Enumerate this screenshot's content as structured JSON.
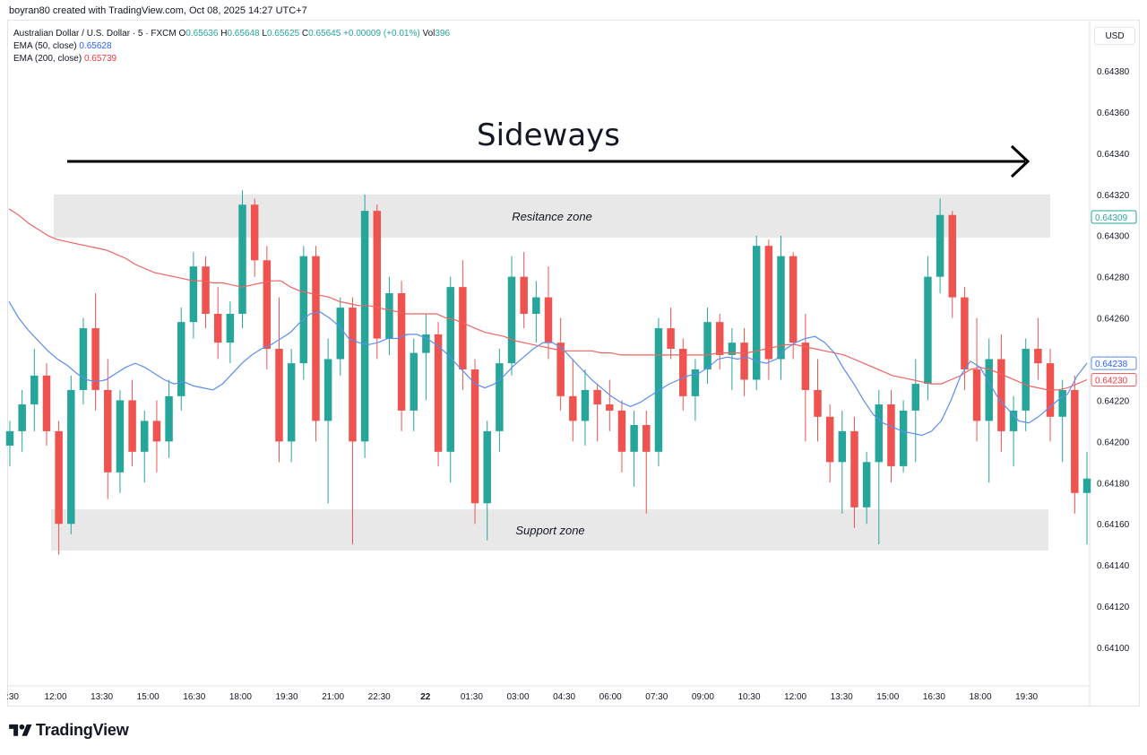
{
  "header": {
    "attribution": "boyran80 created with TradingView.com, Oct 08, 2025 14:27 UTC+7"
  },
  "legend": {
    "symbol": "Australian Dollar / U.S. Dollar · 5 · FXCM",
    "o_label": "O",
    "o_value": "0.65636",
    "h_label": "H",
    "h_value": "0.65648",
    "l_label": "L",
    "l_value": "0.65625",
    "c_label": "C",
    "c_value": "0.65645",
    "change": "+0.00009 (+0.01%)",
    "vol_label": "Vol",
    "vol_value": "396",
    "ema50_label": "EMA (50, close)",
    "ema50_value": "0.65628",
    "ema200_label": "EMA (200, close)",
    "ema200_value": "0.65739"
  },
  "currency_button": "USD",
  "colors": {
    "up": "#26a69a",
    "down": "#ef5350",
    "ema50": "#5b8def",
    "ema200": "#f0625f",
    "zone": "#e8e8e8",
    "axis_text": "#131722"
  },
  "brand": {
    "name": "TradingView",
    "icon": "tradingview-logo-icon"
  },
  "chart_data": {
    "type": "candlestick",
    "title": "Sideways",
    "annotations": [
      "Sideways",
      "Resitance zone",
      "Support zone"
    ],
    "y_axis": {
      "ticks": [
        "0.64380",
        "0.64360",
        "0.64340",
        "0.64320",
        "0.64300",
        "0.64280",
        "0.64260",
        "0.64240",
        "0.64220",
        "0.64200",
        "0.64180",
        "0.64160",
        "0.64140",
        "0.64120",
        "0.64100"
      ],
      "range": [
        0.64082,
        0.64402
      ]
    },
    "x_axis": {
      "ticks": [
        ":30",
        "12:00",
        "13:30",
        "15:00",
        "16:30",
        "18:00",
        "19:30",
        "21:00",
        "22:30",
        "22",
        "01:30",
        "03:00",
        "04:30",
        "06:00",
        "07:30",
        "09:00",
        "10:30",
        "12:00",
        "13:30",
        "15:00",
        "16:30",
        "18:00",
        "19:30"
      ],
      "bold_ticks": [
        "22"
      ]
    },
    "zones": [
      {
        "label": "Resitance zone",
        "low": 0.64299,
        "high": 0.6432
      },
      {
        "label": "Support zone",
        "low": 0.64147,
        "high": 0.64167
      }
    ],
    "price_labels": [
      {
        "value": "0.64309",
        "series": "last"
      },
      {
        "value": "0.64238",
        "series": "ema50"
      },
      {
        "value": "0.64230",
        "series": "ema200"
      }
    ],
    "ema50": [
      [
        0,
        0.64268
      ],
      [
        1,
        0.6426
      ],
      [
        2,
        0.64254
      ],
      [
        3,
        0.64249
      ],
      [
        4,
        0.64244
      ],
      [
        5,
        0.6424
      ],
      [
        6,
        0.64237
      ],
      [
        7,
        0.64233
      ],
      [
        8,
        0.6423
      ],
      [
        9,
        0.64229
      ],
      [
        10,
        0.6423
      ],
      [
        11,
        0.64233
      ],
      [
        12,
        0.64236
      ],
      [
        13,
        0.64238
      ],
      [
        14,
        0.64236
      ],
      [
        15,
        0.64233
      ],
      [
        16,
        0.6423
      ],
      [
        17,
        0.64228
      ],
      [
        18,
        0.64229
      ],
      [
        19,
        0.64227
      ],
      [
        20,
        0.64226
      ],
      [
        21,
        0.64225
      ],
      [
        22,
        0.64228
      ],
      [
        23,
        0.64233
      ],
      [
        24,
        0.64238
      ],
      [
        25,
        0.64242
      ],
      [
        26,
        0.64245
      ],
      [
        27,
        0.64247
      ],
      [
        28,
        0.6425
      ],
      [
        29,
        0.64253
      ],
      [
        30,
        0.64258
      ],
      [
        31,
        0.64262
      ],
      [
        32,
        0.64263
      ],
      [
        33,
        0.6426
      ],
      [
        34,
        0.64256
      ],
      [
        35,
        0.6425
      ],
      [
        36,
        0.64248
      ],
      [
        37,
        0.64247
      ],
      [
        38,
        0.64248
      ],
      [
        39,
        0.6425
      ],
      [
        40,
        0.6425
      ],
      [
        41,
        0.64252
      ],
      [
        42,
        0.64252
      ],
      [
        43,
        0.6425
      ],
      [
        44,
        0.64247
      ],
      [
        45,
        0.64243
      ],
      [
        46,
        0.64238
      ],
      [
        47,
        0.64233
      ],
      [
        48,
        0.64228
      ],
      [
        49,
        0.64226
      ],
      [
        50,
        0.64228
      ],
      [
        51,
        0.64232
      ],
      [
        52,
        0.64237
      ],
      [
        53,
        0.64241
      ],
      [
        54,
        0.64245
      ],
      [
        55,
        0.64248
      ],
      [
        56,
        0.64248
      ],
      [
        57,
        0.64245
      ],
      [
        58,
        0.6424
      ],
      [
        59,
        0.64235
      ],
      [
        60,
        0.6423
      ],
      [
        61,
        0.64226
      ],
      [
        62,
        0.64222
      ],
      [
        63,
        0.64219
      ],
      [
        64,
        0.64217
      ],
      [
        65,
        0.64219
      ],
      [
        66,
        0.64222
      ],
      [
        67,
        0.64225
      ],
      [
        68,
        0.64228
      ],
      [
        69,
        0.6423
      ],
      [
        70,
        0.64232
      ],
      [
        71,
        0.64233
      ],
      [
        72,
        0.64236
      ],
      [
        73,
        0.6424
      ],
      [
        74,
        0.64241
      ],
      [
        75,
        0.6424
      ],
      [
        76,
        0.64241
      ],
      [
        77,
        0.64239
      ],
      [
        78,
        0.64238
      ],
      [
        79,
        0.6424
      ],
      [
        80,
        0.64245
      ],
      [
        81,
        0.64248
      ],
      [
        82,
        0.6425
      ],
      [
        83,
        0.64251
      ],
      [
        84,
        0.64248
      ],
      [
        85,
        0.64243
      ],
      [
        86,
        0.64235
      ],
      [
        87,
        0.64228
      ],
      [
        88,
        0.6422
      ],
      [
        89,
        0.64213
      ],
      [
        90,
        0.64209
      ],
      [
        91,
        0.64207
      ],
      [
        92,
        0.64205
      ],
      [
        93,
        0.64204
      ],
      [
        94,
        0.64203
      ],
      [
        95,
        0.64205
      ],
      [
        96,
        0.6421
      ],
      [
        97,
        0.6422
      ],
      [
        98,
        0.64232
      ],
      [
        99,
        0.64239
      ],
      [
        100,
        0.64236
      ],
      [
        101,
        0.64228
      ],
      [
        102,
        0.6422
      ],
      [
        103,
        0.64215
      ],
      [
        104,
        0.6421
      ],
      [
        105,
        0.64209
      ],
      [
        106,
        0.64212
      ],
      [
        107,
        0.64216
      ],
      [
        108,
        0.6422
      ],
      [
        109,
        0.64223
      ],
      [
        110,
        0.64232
      ],
      [
        111,
        0.64238
      ]
    ],
    "ema200": [
      [
        0,
        0.64313
      ],
      [
        1,
        0.6431
      ],
      [
        2,
        0.64306
      ],
      [
        3,
        0.64303
      ],
      [
        4,
        0.643
      ],
      [
        5,
        0.64298
      ],
      [
        6,
        0.64297
      ],
      [
        7,
        0.64296
      ],
      [
        8,
        0.64295
      ],
      [
        9,
        0.64294
      ],
      [
        10,
        0.64293
      ],
      [
        11,
        0.64291
      ],
      [
        12,
        0.64289
      ],
      [
        13,
        0.64286
      ],
      [
        14,
        0.64284
      ],
      [
        15,
        0.64282
      ],
      [
        16,
        0.64281
      ],
      [
        17,
        0.6428
      ],
      [
        18,
        0.64279
      ],
      [
        19,
        0.64278
      ],
      [
        20,
        0.64278
      ],
      [
        21,
        0.64277
      ],
      [
        22,
        0.64277
      ],
      [
        23,
        0.64276
      ],
      [
        24,
        0.64275
      ],
      [
        25,
        0.64276
      ],
      [
        26,
        0.64277
      ],
      [
        27,
        0.64278
      ],
      [
        28,
        0.64278
      ],
      [
        29,
        0.64275
      ],
      [
        30,
        0.64273
      ],
      [
        31,
        0.64272
      ],
      [
        32,
        0.64271
      ],
      [
        33,
        0.6427
      ],
      [
        34,
        0.64268
      ],
      [
        35,
        0.64267
      ],
      [
        36,
        0.64266
      ],
      [
        37,
        0.64266
      ],
      [
        38,
        0.64265
      ],
      [
        39,
        0.64264
      ],
      [
        40,
        0.64263
      ],
      [
        41,
        0.64262
      ],
      [
        42,
        0.64262
      ],
      [
        43,
        0.64262
      ],
      [
        44,
        0.64262
      ],
      [
        45,
        0.6426
      ],
      [
        46,
        0.64259
      ],
      [
        47,
        0.64257
      ],
      [
        48,
        0.64255
      ],
      [
        49,
        0.64253
      ],
      [
        50,
        0.64252
      ],
      [
        51,
        0.64251
      ],
      [
        52,
        0.64249
      ],
      [
        53,
        0.64248
      ],
      [
        54,
        0.64247
      ],
      [
        55,
        0.64246
      ],
      [
        56,
        0.64245
      ],
      [
        57,
        0.64244
      ],
      [
        58,
        0.64244
      ],
      [
        59,
        0.64244
      ],
      [
        60,
        0.64244
      ],
      [
        61,
        0.64243
      ],
      [
        62,
        0.64243
      ],
      [
        63,
        0.64242
      ],
      [
        64,
        0.64242
      ],
      [
        65,
        0.64242
      ],
      [
        66,
        0.64242
      ],
      [
        67,
        0.64242
      ],
      [
        68,
        0.64242
      ],
      [
        69,
        0.64242
      ],
      [
        70,
        0.64242
      ],
      [
        71,
        0.64242
      ],
      [
        72,
        0.64242
      ],
      [
        73,
        0.64243
      ],
      [
        74,
        0.64243
      ],
      [
        75,
        0.64243
      ],
      [
        76,
        0.64243
      ],
      [
        77,
        0.64244
      ],
      [
        78,
        0.64245
      ],
      [
        79,
        0.64246
      ],
      [
        80,
        0.64247
      ],
      [
        81,
        0.64247
      ],
      [
        82,
        0.64246
      ],
      [
        83,
        0.64245
      ],
      [
        84,
        0.64244
      ],
      [
        85,
        0.64243
      ],
      [
        86,
        0.64242
      ],
      [
        87,
        0.6424
      ],
      [
        88,
        0.64238
      ],
      [
        89,
        0.64236
      ],
      [
        90,
        0.64234
      ],
      [
        91,
        0.64232
      ],
      [
        92,
        0.64231
      ],
      [
        93,
        0.6423
      ],
      [
        94,
        0.64229
      ],
      [
        95,
        0.64228
      ],
      [
        96,
        0.64228
      ],
      [
        97,
        0.6423
      ],
      [
        98,
        0.64232
      ],
      [
        99,
        0.64235
      ],
      [
        100,
        0.64236
      ],
      [
        101,
        0.64235
      ],
      [
        102,
        0.64233
      ],
      [
        103,
        0.64231
      ],
      [
        104,
        0.64229
      ],
      [
        105,
        0.64227
      ],
      [
        106,
        0.64226
      ],
      [
        107,
        0.64225
      ],
      [
        108,
        0.64225
      ],
      [
        109,
        0.64226
      ],
      [
        110,
        0.64228
      ],
      [
        111,
        0.6423
      ]
    ],
    "candles": [
      [
        0.64198,
        0.6421,
        0.64188,
        0.64205
      ],
      [
        0.64205,
        0.64225,
        0.64195,
        0.64218
      ],
      [
        0.64218,
        0.64245,
        0.64205,
        0.64232
      ],
      [
        0.64232,
        0.64238,
        0.64198,
        0.64205
      ],
      [
        0.64205,
        0.6421,
        0.64145,
        0.6416
      ],
      [
        0.6416,
        0.64232,
        0.64155,
        0.64225
      ],
      [
        0.64225,
        0.6426,
        0.64218,
        0.64255
      ],
      [
        0.64255,
        0.64272,
        0.64215,
        0.64225
      ],
      [
        0.64225,
        0.6424,
        0.64172,
        0.64185
      ],
      [
        0.64185,
        0.64225,
        0.64175,
        0.6422
      ],
      [
        0.6422,
        0.6423,
        0.64188,
        0.64195
      ],
      [
        0.64195,
        0.64215,
        0.6418,
        0.6421
      ],
      [
        0.6421,
        0.6422,
        0.64185,
        0.642
      ],
      [
        0.642,
        0.6423,
        0.64192,
        0.64222
      ],
      [
        0.64222,
        0.64265,
        0.64215,
        0.64258
      ],
      [
        0.64258,
        0.64292,
        0.6425,
        0.64285
      ],
      [
        0.64285,
        0.6429,
        0.64255,
        0.64262
      ],
      [
        0.64262,
        0.64275,
        0.6424,
        0.64248
      ],
      [
        0.64248,
        0.64268,
        0.64238,
        0.64262
      ],
      [
        0.64262,
        0.64322,
        0.64255,
        0.64315
      ],
      [
        0.64315,
        0.64318,
        0.6428,
        0.64288
      ],
      [
        0.64288,
        0.64295,
        0.64235,
        0.64245
      ],
      [
        0.64245,
        0.6427,
        0.6419,
        0.642
      ],
      [
        0.642,
        0.64245,
        0.6419,
        0.64238
      ],
      [
        0.64238,
        0.64295,
        0.6423,
        0.6429
      ],
      [
        0.6429,
        0.64295,
        0.642,
        0.6421
      ],
      [
        0.6421,
        0.6425,
        0.6417,
        0.6424
      ],
      [
        0.6424,
        0.6427,
        0.64232,
        0.64265
      ],
      [
        0.64265,
        0.6427,
        0.6415,
        0.642
      ],
      [
        0.642,
        0.6432,
        0.64192,
        0.64312
      ],
      [
        0.64312,
        0.64315,
        0.6424,
        0.6425
      ],
      [
        0.6425,
        0.6428,
        0.64242,
        0.64272
      ],
      [
        0.64272,
        0.64278,
        0.64205,
        0.64215
      ],
      [
        0.64215,
        0.6425,
        0.64205,
        0.64243
      ],
      [
        0.64243,
        0.64262,
        0.6422,
        0.64252
      ],
      [
        0.64252,
        0.64258,
        0.64188,
        0.64195
      ],
      [
        0.64195,
        0.6428,
        0.6418,
        0.64275
      ],
      [
        0.64275,
        0.64288,
        0.64225,
        0.64235
      ],
      [
        0.64235,
        0.6424,
        0.6416,
        0.6417
      ],
      [
        0.6417,
        0.6421,
        0.64152,
        0.64205
      ],
      [
        0.64205,
        0.64245,
        0.64195,
        0.64238
      ],
      [
        0.64238,
        0.6429,
        0.64232,
        0.6428
      ],
      [
        0.6428,
        0.64292,
        0.64255,
        0.64262
      ],
      [
        0.64262,
        0.64278,
        0.64248,
        0.6427
      ],
      [
        0.6427,
        0.64285,
        0.6424,
        0.64248
      ],
      [
        0.64248,
        0.6426,
        0.64215,
        0.64222
      ],
      [
        0.64222,
        0.6424,
        0.642,
        0.6421
      ],
      [
        0.6421,
        0.64235,
        0.64198,
        0.64225
      ],
      [
        0.64225,
        0.64228,
        0.642,
        0.64218
      ],
      [
        0.64218,
        0.6423,
        0.64205,
        0.64215
      ],
      [
        0.64215,
        0.6422,
        0.64185,
        0.64195
      ],
      [
        0.64195,
        0.64215,
        0.64178,
        0.64208
      ],
      [
        0.64208,
        0.64215,
        0.64165,
        0.64195
      ],
      [
        0.64195,
        0.6426,
        0.64188,
        0.64255
      ],
      [
        0.64255,
        0.64265,
        0.6424,
        0.64245
      ],
      [
        0.64245,
        0.6425,
        0.64215,
        0.64222
      ],
      [
        0.64222,
        0.6424,
        0.6421,
        0.64235
      ],
      [
        0.64235,
        0.64265,
        0.64228,
        0.64258
      ],
      [
        0.64258,
        0.64262,
        0.64235,
        0.64242
      ],
      [
        0.64242,
        0.64255,
        0.64225,
        0.64248
      ],
      [
        0.64248,
        0.64255,
        0.64222,
        0.6423
      ],
      [
        0.6423,
        0.643,
        0.64225,
        0.64295
      ],
      [
        0.64295,
        0.64298,
        0.6423,
        0.6424
      ],
      [
        0.6424,
        0.643,
        0.6423,
        0.6429
      ],
      [
        0.6429,
        0.64292,
        0.6424,
        0.64248
      ],
      [
        0.64248,
        0.64262,
        0.642,
        0.64225
      ],
      [
        0.64225,
        0.6424,
        0.642,
        0.64212
      ],
      [
        0.64212,
        0.64218,
        0.6418,
        0.6419
      ],
      [
        0.6419,
        0.64215,
        0.64165,
        0.64205
      ],
      [
        0.64205,
        0.64212,
        0.64158,
        0.64168
      ],
      [
        0.64168,
        0.64195,
        0.6416,
        0.6419
      ],
      [
        0.6419,
        0.64225,
        0.6415,
        0.64218
      ],
      [
        0.64218,
        0.64225,
        0.6418,
        0.64188
      ],
      [
        0.64188,
        0.6422,
        0.64185,
        0.64215
      ],
      [
        0.64215,
        0.6424,
        0.6419,
        0.64228
      ],
      [
        0.64228,
        0.6429,
        0.6422,
        0.6428
      ],
      [
        0.6428,
        0.64318,
        0.64272,
        0.6431
      ],
      [
        0.6431,
        0.64312,
        0.6426,
        0.6427
      ],
      [
        0.6427,
        0.64275,
        0.64225,
        0.64235
      ],
      [
        0.64235,
        0.6426,
        0.642,
        0.6421
      ],
      [
        0.6421,
        0.6425,
        0.6418,
        0.6424
      ],
      [
        0.6424,
        0.64252,
        0.64195,
        0.64205
      ],
      [
        0.64205,
        0.64222,
        0.64188,
        0.64215
      ],
      [
        0.64215,
        0.6425,
        0.64205,
        0.64245
      ],
      [
        0.64245,
        0.6426,
        0.6423,
        0.64238
      ],
      [
        0.64238,
        0.64245,
        0.642,
        0.64212
      ],
      [
        0.64212,
        0.6423,
        0.6419,
        0.64225
      ],
      [
        0.64225,
        0.64232,
        0.64165,
        0.64175
      ],
      [
        0.64175,
        0.64195,
        0.6415,
        0.64182
      ]
    ]
  }
}
